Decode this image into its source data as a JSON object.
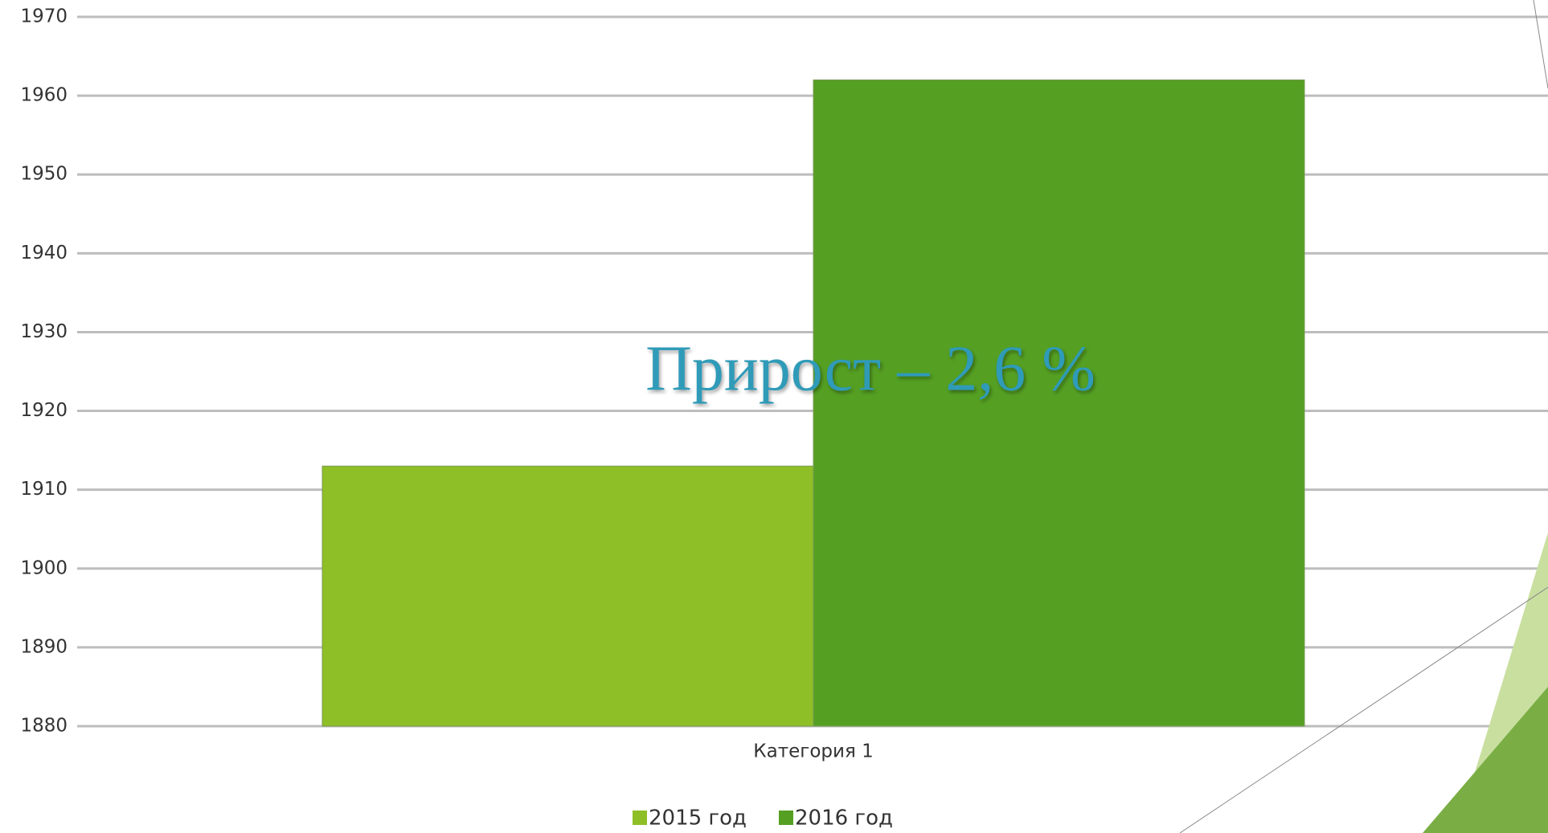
{
  "chart_data": {
    "type": "bar",
    "categories": [
      "Категория 1"
    ],
    "series": [
      {
        "name": "2015 год",
        "color": "#8fbf26",
        "values": [
          1913
        ]
      },
      {
        "name": "2016 год",
        "color": "#55a023",
        "values": [
          1962
        ]
      }
    ],
    "ylim": [
      1880,
      1970
    ],
    "yticks": [
      1880,
      1890,
      1900,
      1910,
      1920,
      1930,
      1940,
      1950,
      1960,
      1970
    ],
    "grid": true,
    "legend": "bottom",
    "annotation": "Прирост – 2,6 %"
  }
}
